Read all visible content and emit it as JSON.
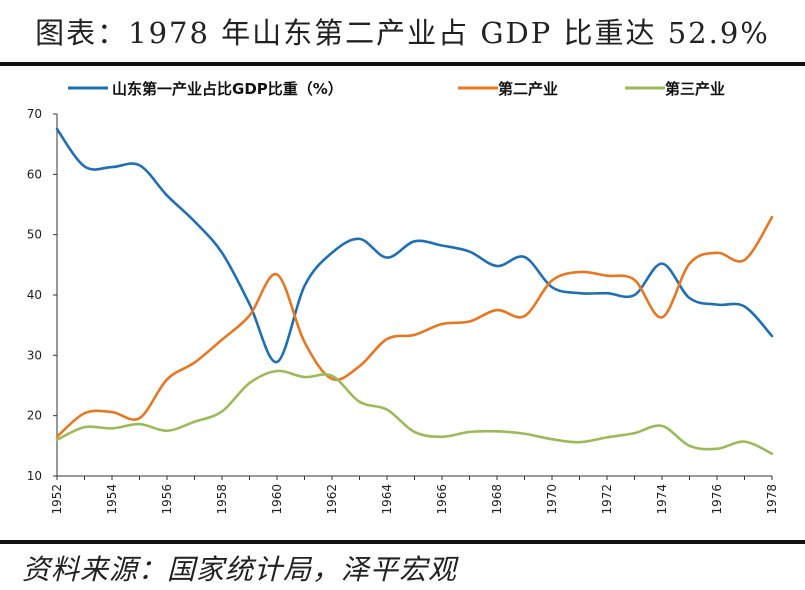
{
  "header": {
    "title": "图表：1978 年山东第二产业占 GDP 比重达 52.9%"
  },
  "footer": {
    "source": "资料来源：国家统计局，泽平宏观"
  },
  "chart_data": {
    "type": "line",
    "title": "图表：1978 年山东第二产业占 GDP 比重达 52.9%",
    "xlabel": "",
    "ylabel": "",
    "xlim": [
      1952,
      1978
    ],
    "ylim": [
      10,
      70
    ],
    "yticks": [
      10,
      20,
      30,
      40,
      50,
      60,
      70
    ],
    "xticks": [
      1952,
      1954,
      1956,
      1958,
      1960,
      1962,
      1964,
      1966,
      1968,
      1970,
      1972,
      1974,
      1976,
      1978
    ],
    "legend_position": "top",
    "grid": false,
    "x": [
      1952,
      1953,
      1954,
      1955,
      1956,
      1957,
      1958,
      1959,
      1960,
      1961,
      1962,
      1963,
      1964,
      1965,
      1966,
      1967,
      1968,
      1969,
      1970,
      1971,
      1972,
      1973,
      1974,
      1975,
      1976,
      1977,
      1978
    ],
    "series": [
      {
        "name": "山东第一产业占比GDP比重（%）",
        "color": "#1f6fb5",
        "values": [
          67.5,
          61.3,
          61.2,
          61.5,
          56.5,
          52.2,
          47.0,
          38.5,
          28.9,
          41.5,
          47.0,
          49.3,
          46.2,
          48.9,
          48.2,
          47.2,
          44.8,
          46.3,
          41.3,
          40.3,
          40.3,
          40.0,
          45.2,
          39.5,
          38.4,
          38.1,
          33.2
        ]
      },
      {
        "name": "第二产业",
        "color": "#e87722",
        "values": [
          16.5,
          20.4,
          20.6,
          19.6,
          26.0,
          28.8,
          32.6,
          36.6,
          43.4,
          32.2,
          26.1,
          28.2,
          32.7,
          33.4,
          35.2,
          35.6,
          37.5,
          36.5,
          42.4,
          43.8,
          43.2,
          42.5,
          36.3,
          45.2,
          47.0,
          45.8,
          52.9
        ]
      },
      {
        "name": "第三产业",
        "color": "#9bbb59",
        "values": [
          16.0,
          18.1,
          17.9,
          18.6,
          17.5,
          19.0,
          20.7,
          25.4,
          27.4,
          26.4,
          26.6,
          22.3,
          21.0,
          17.3,
          16.5,
          17.3,
          17.4,
          17.0,
          16.1,
          15.6,
          16.4,
          17.1,
          18.3,
          15.0,
          14.5,
          15.7,
          13.7
        ]
      }
    ]
  }
}
